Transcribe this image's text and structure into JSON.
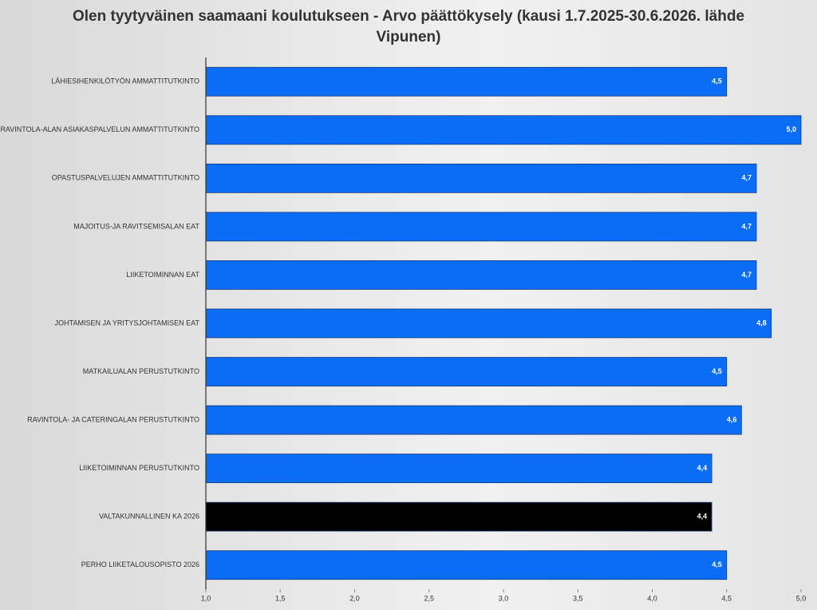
{
  "chart_data": {
    "type": "barh",
    "title": "Olen tyytyväinen saamaani koulutukseen - Arvo päättökysely (kausi 1.7.2025-30.6.2026. lähde Vipunen)",
    "categories": [
      "LÄHIESIHENKILÖTYÖN AMMATTITUTKINTO",
      "RAVINTOLA-ALAN ASIAKASPALVELUN AMMATTITUTKINTO",
      "OPASTUSPALVELUJEN AMMATTITUTKINTO",
      "MAJOITUS-JA RAVITSEMISALAN EAT",
      "LIIKETOIMINNAN EAT",
      "JOHTAMISEN JA YRITYSJOHTAMISEN EAT",
      "MATKAILUALAN PERUSTUTKINTO",
      "RAVINTOLA- JA CATERINGALAN PERUSTUTKINTO",
      "LIIKETOIMINNAN PERUSTUTKINTO",
      "VALTAKUNNALLINEN KA 2026",
      "PERHO LIIKETALOUSOPISTO 2026"
    ],
    "values": [
      4.5,
      5.0,
      4.7,
      4.7,
      4.7,
      4.8,
      4.5,
      4.6,
      4.4,
      4.4,
      4.5
    ],
    "value_labels": [
      "4,5",
      "5,0",
      "4,7",
      "4,7",
      "4,7",
      "4,8",
      "4,5",
      "4,6",
      "4,4",
      "4,4",
      "4,5"
    ],
    "colors": [
      "#0b6cf5",
      "#0b6cf5",
      "#0b6cf5",
      "#0b6cf5",
      "#0b6cf5",
      "#0b6cf5",
      "#0b6cf5",
      "#0b6cf5",
      "#0b6cf5",
      "#000000",
      "#0b6cf5"
    ],
    "xlim": [
      1.0,
      5.0
    ],
    "xticks": [
      {
        "value": 1.0,
        "label": "1,0"
      },
      {
        "value": 1.5,
        "label": "1,5"
      },
      {
        "value": 2.0,
        "label": "2,0"
      },
      {
        "value": 2.5,
        "label": "2,5"
      },
      {
        "value": 3.0,
        "label": "3,0"
      },
      {
        "value": 3.5,
        "label": "3,5"
      },
      {
        "value": 4.0,
        "label": "4,0"
      },
      {
        "value": 4.5,
        "label": "4,5"
      },
      {
        "value": 5.0,
        "label": "5,0"
      }
    ]
  }
}
